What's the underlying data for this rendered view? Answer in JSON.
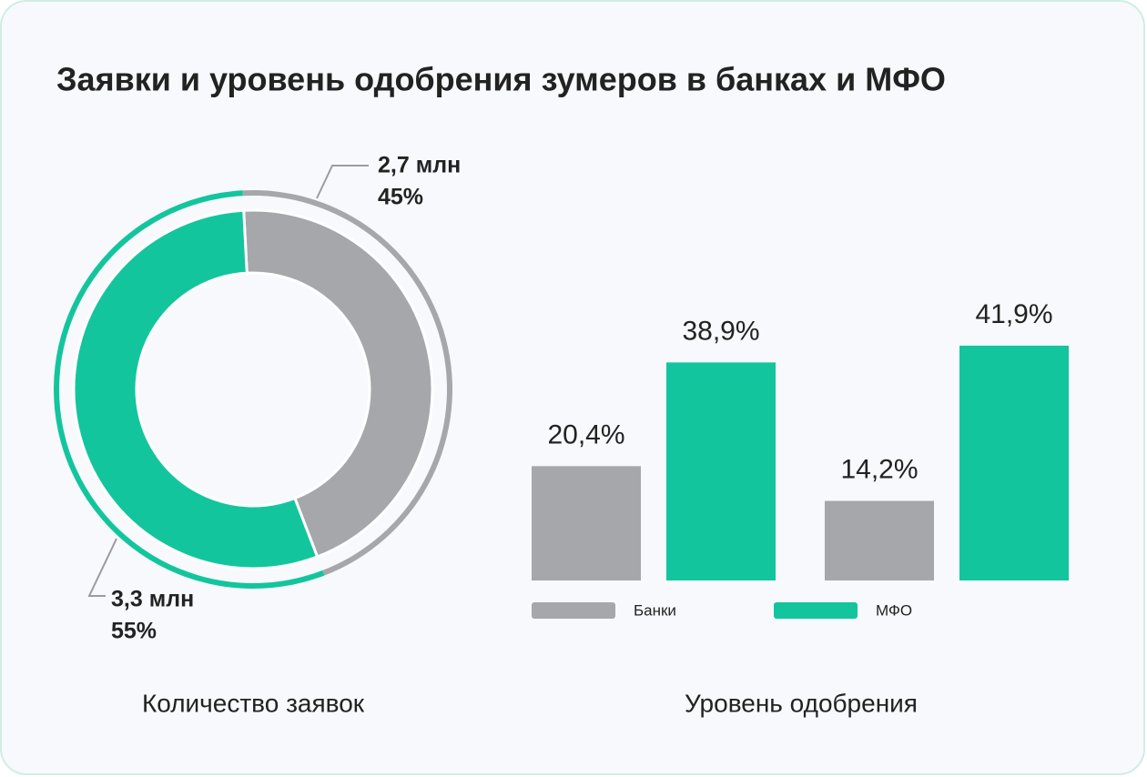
{
  "title": "Заявки и уровень одобрения зумеров в банках и МФО",
  "chart_data": [
    {
      "type": "pie",
      "caption": "Количество заявок",
      "values": [
        2.7,
        3.3
      ],
      "value_labels": [
        "2,7 млн",
        "3,3 млн"
      ],
      "percentages": [
        45,
        55
      ],
      "percentage_labels": [
        "45%",
        "55%"
      ],
      "colors": [
        "#a5a7ab",
        "#13c59d"
      ]
    },
    {
      "type": "bar",
      "caption": "Уровень одобрения",
      "categories": [
        null,
        null
      ],
      "series": [
        {
          "name": "Банки",
          "color": "#a5a7ab",
          "values": [
            20.4,
            14.2
          ],
          "value_labels": [
            "20,4%",
            "14,2%"
          ]
        },
        {
          "name": "МФО",
          "color": "#13c59d",
          "values": [
            38.9,
            41.9
          ],
          "value_labels": [
            "38,9%",
            "41,9%"
          ]
        }
      ],
      "ylim": [
        0,
        50
      ]
    }
  ]
}
